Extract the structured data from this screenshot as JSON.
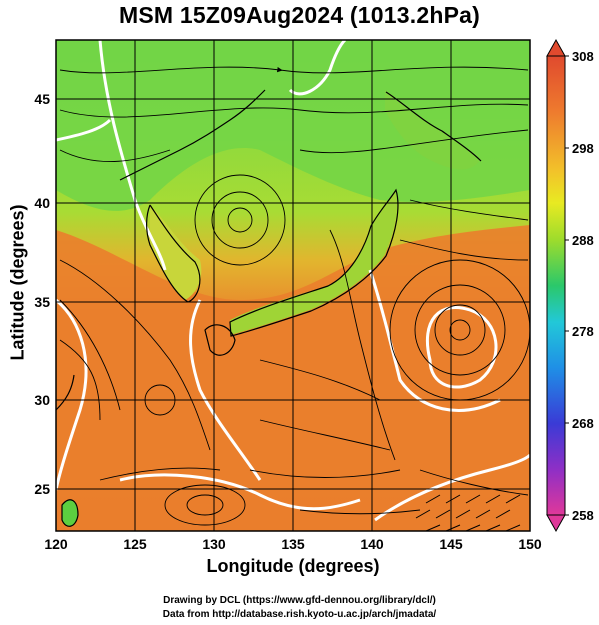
{
  "title": "MSM 15Z09Aug2024 (1013.2hPa)",
  "axes": {
    "xlabel": "Longitude (degrees)",
    "ylabel": "Latitude  (degrees)",
    "x_ticks": [
      "120",
      "125",
      "130",
      "135",
      "140",
      "145",
      "150"
    ],
    "y_ticks": [
      "25",
      "30",
      "35",
      "40",
      "45"
    ],
    "xlim": [
      120,
      150
    ],
    "ylim": [
      22.4,
      47.6
    ]
  },
  "colorbar": {
    "ticks": [
      "308",
      "298",
      "288",
      "278",
      "268",
      "258"
    ],
    "range": [
      258,
      308
    ],
    "colors": [
      "#e0389a",
      "#8e2fc6",
      "#3a3bd6",
      "#1f8fe6",
      "#22c8d8",
      "#2bc86a",
      "#47cf3a",
      "#9edc2c",
      "#e8ea22",
      "#f2b42a",
      "#ee7a2e",
      "#e04a2e"
    ]
  },
  "map_colors": {
    "warm": "#e97a2c",
    "warm2": "#ea8c2e",
    "mid": "#cfd33a",
    "cool": "#69d44a",
    "land": "#56cf44",
    "contour": "#ffffff"
  },
  "credits": {
    "line1": "Drawing by DCL (https://www.gfd-dennou.org/library/dcl/)",
    "line2": "Data from http://database.rish.kyoto-u.ac.jp/arch/jmadata/"
  }
}
